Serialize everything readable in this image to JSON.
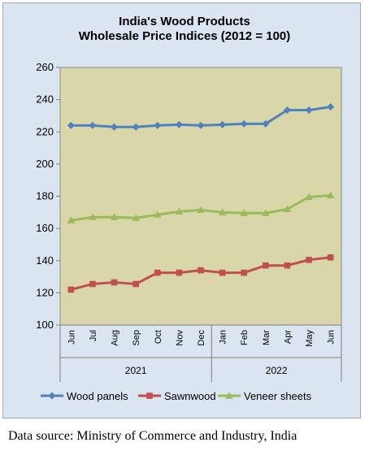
{
  "chart_data": {
    "type": "line",
    "title_lines": [
      "India's Wood Products",
      "Wholesale Price Indices (2012 = 100)"
    ],
    "x": [
      "Jun",
      "Jul",
      "Aug",
      "Sep",
      "Oct",
      "Nov",
      "Dec",
      "Jan",
      "Feb",
      "Mar",
      "Apr",
      "May",
      "Jun"
    ],
    "year_groups": [
      {
        "label": "2021",
        "start": 0,
        "end": 6
      },
      {
        "label": "2022",
        "start": 7,
        "end": 12
      }
    ],
    "ylim": [
      100,
      260
    ],
    "yticks": [
      100,
      120,
      140,
      160,
      180,
      200,
      220,
      240,
      260
    ],
    "grid": false,
    "legend_position": "bottom",
    "series": [
      {
        "name": "Wood panels",
        "color": "#4f81bd",
        "marker": "diamond",
        "values": [
          224,
          224,
          223,
          223,
          224,
          224.5,
          224,
          224.5,
          225,
          225,
          233.5,
          233.5,
          235.5
        ]
      },
      {
        "name": "Sawnwood",
        "color": "#c0504d",
        "marker": "square",
        "values": [
          122,
          125.5,
          126.5,
          125.5,
          132.5,
          132.5,
          134,
          132.5,
          132.5,
          137,
          137,
          140.5,
          142
        ]
      },
      {
        "name": "Veneer sheets",
        "color": "#9bbb59",
        "marker": "triangle",
        "values": [
          165,
          167,
          167,
          166.5,
          168.5,
          170.5,
          171.5,
          170,
          169.5,
          169.5,
          172,
          179.5,
          180.5
        ]
      }
    ]
  },
  "source": "Data source: Ministry of Commerce and Industry, India"
}
